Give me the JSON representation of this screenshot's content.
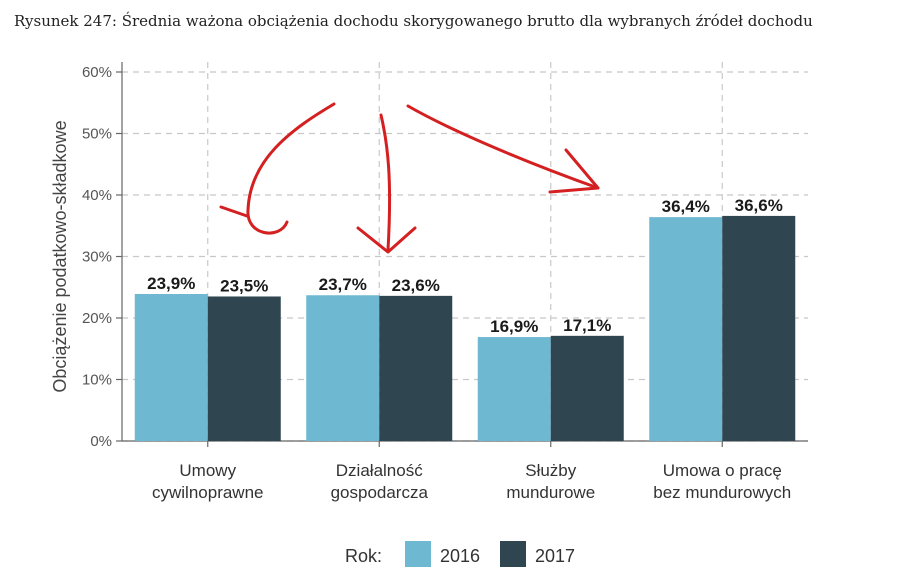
{
  "caption": "Rysunek 247: Średnia ważona obciążenia dochodu skorygowanego brutto dla wybranych źródeł dochodu",
  "chart_data": {
    "type": "bar",
    "ylabel": "Obciążenie podatkowo-składkowe",
    "xlabel": "",
    "ylim": [
      0,
      60
    ],
    "yticks": [
      0,
      10,
      20,
      30,
      40,
      50,
      60
    ],
    "ytick_labels": [
      "0%",
      "10%",
      "20%",
      "30%",
      "40%",
      "50%",
      "60%"
    ],
    "grid": true,
    "categories": [
      [
        "Umowy",
        "cywilnoprawne"
      ],
      [
        "Działalność",
        "gospodarcza"
      ],
      [
        "Służby",
        "mundurowe"
      ],
      [
        "Umowa o pracę",
        "bez mundurowych"
      ]
    ],
    "series": [
      {
        "name": "2016",
        "color": "#6fb8d1",
        "values": [
          23.9,
          23.7,
          16.9,
          36.4
        ],
        "labels": [
          "23,9%",
          "23,7%",
          "16,9%",
          "36,4%"
        ]
      },
      {
        "name": "2017",
        "color": "#2f4650",
        "values": [
          23.5,
          23.6,
          17.1,
          36.6
        ],
        "labels": [
          "23,5%",
          "23,6%",
          "17,1%",
          "36,6%"
        ]
      }
    ],
    "legend": {
      "title": "Rok:",
      "placement": "bottom"
    }
  }
}
